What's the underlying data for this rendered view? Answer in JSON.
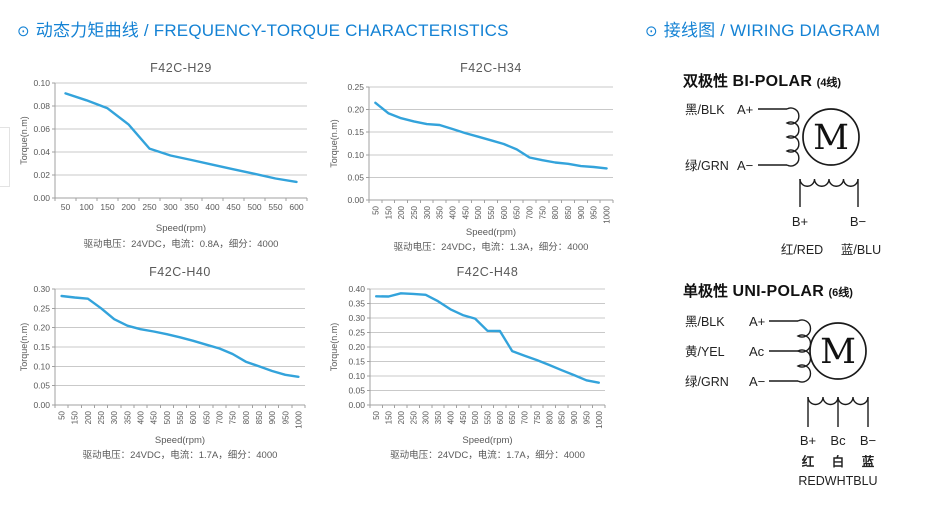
{
  "colors": {
    "accent_blue": "#1482d4",
    "curve_blue": "#33a3db",
    "grid_gray": "#c9c9c9",
    "axis_gray": "#a0a0a0",
    "text_gray": "#595959",
    "diagram_black": "#1a1a1a"
  },
  "headers": {
    "left": {
      "bullet": "⊙",
      "text": "动态力矩曲线 / FREQUENCY-TORQUE CHARACTERISTICS"
    },
    "right": {
      "bullet": "⊙",
      "text": "接线图 / WIRING DIAGRAM"
    }
  },
  "chart_data": [
    {
      "type": "line",
      "title": "F42C-H29",
      "xlabel": "Speed(rpm)",
      "ylabel": "Torque(n.m)",
      "caption": "驱动电压：24VDC，电流：0.8A，细分：4000",
      "categories": [
        50,
        100,
        150,
        200,
        250,
        300,
        350,
        400,
        450,
        500,
        550,
        600
      ],
      "values": [
        0.091,
        0.085,
        0.078,
        0.064,
        0.043,
        0.037,
        0.033,
        0.029,
        0.025,
        0.021,
        0.017,
        0.014
      ],
      "ylim": [
        0,
        0.1
      ],
      "y_step": 0.02,
      "y_ticks": [
        "0.00",
        "0.02",
        "0.04",
        "0.06",
        "0.08",
        "0.10"
      ],
      "x_labels_rotated": false,
      "grid": true,
      "legend": "none"
    },
    {
      "type": "line",
      "title": "F42C-H34",
      "xlabel": "Speed(rpm)",
      "ylabel": "Torque(n.m)",
      "caption": "驱动电压：24VDC，电流：1.3A，细分：4000",
      "categories": [
        50,
        150,
        200,
        250,
        300,
        350,
        400,
        450,
        500,
        550,
        600,
        650,
        700,
        750,
        800,
        850,
        900,
        950,
        1000
      ],
      "values": [
        0.215,
        0.192,
        0.181,
        0.174,
        0.168,
        0.166,
        0.157,
        0.148,
        0.14,
        0.132,
        0.124,
        0.112,
        0.094,
        0.088,
        0.083,
        0.08,
        0.075,
        0.073,
        0.07
      ],
      "ylim": [
        0,
        0.25
      ],
      "y_step": 0.05,
      "y_ticks": [
        "0.00",
        "0.05",
        "0.10",
        "0.15",
        "0.20",
        "0.25"
      ],
      "x_labels_rotated": true,
      "grid": true,
      "legend": "none"
    },
    {
      "type": "line",
      "title": "F42C-H40",
      "xlabel": "Speed(rpm)",
      "ylabel": "Torque(n.m)",
      "caption": "驱动电压：24VDC，电流：1.7A，细分：4000",
      "categories": [
        50,
        150,
        200,
        250,
        300,
        350,
        400,
        450,
        500,
        550,
        600,
        650,
        700,
        750,
        800,
        850,
        900,
        950,
        1000
      ],
      "values": [
        0.282,
        0.278,
        0.275,
        0.25,
        0.222,
        0.205,
        0.196,
        0.19,
        0.183,
        0.175,
        0.166,
        0.156,
        0.146,
        0.132,
        0.112,
        0.1,
        0.088,
        0.078,
        0.073
      ],
      "ylim": [
        0,
        0.3
      ],
      "y_step": 0.05,
      "y_ticks": [
        "0.00",
        "0.05",
        "0.10",
        "0.15",
        "0.20",
        "0.25",
        "0.30"
      ],
      "x_labels_rotated": true,
      "grid": true,
      "legend": "none"
    },
    {
      "type": "line",
      "title": "F42C-H48",
      "xlabel": "Speed(rpm)",
      "ylabel": "Torque(n.m)",
      "caption": "驱动电压：24VDC，电流：1.7A，细分：4000",
      "categories": [
        50,
        150,
        200,
        250,
        300,
        350,
        400,
        450,
        500,
        550,
        600,
        650,
        700,
        750,
        800,
        850,
        900,
        950,
        1000
      ],
      "values": [
        0.375,
        0.374,
        0.385,
        0.383,
        0.38,
        0.358,
        0.33,
        0.31,
        0.298,
        0.256,
        0.255,
        0.186,
        0.17,
        0.155,
        0.138,
        0.12,
        0.103,
        0.085,
        0.077
      ],
      "ylim": [
        0,
        0.4
      ],
      "y_step": 0.05,
      "y_ticks": [
        "0.00",
        "0.05",
        "0.10",
        "0.15",
        "0.20",
        "0.25",
        "0.30",
        "0.35",
        "0.40"
      ],
      "x_labels_rotated": true,
      "grid": true,
      "legend": "none"
    }
  ],
  "wiring": {
    "bipolar": {
      "title_zh": "双极性",
      "title_en": "BI-POLAR",
      "wire_count": "(4线)",
      "motor": "M",
      "phase_a": {
        "plus_color": "黑/BLK",
        "plus": "A+",
        "minus_color": "绿/GRN",
        "minus": "A−"
      },
      "phase_b": {
        "plus": "B+",
        "minus": "B−",
        "plus_color": "红/RED",
        "minus_color": "蓝/BLU"
      }
    },
    "unipolar": {
      "title_zh": "单极性",
      "title_en": "UNI-POLAR",
      "wire_count": "(6线)",
      "motor": "M",
      "phase_a": {
        "plus_color": "黑/BLK",
        "plus": "A+",
        "center_color": "黄/YEL",
        "center": "Ac",
        "minus_color": "绿/GRN",
        "minus": "A−"
      },
      "phase_b": {
        "plus": "B+",
        "center": "Bc",
        "minus": "B−",
        "plus_color_zh": "红",
        "center_color_zh": "白",
        "minus_color_zh": "蓝",
        "colors_en": "REDWHTBLU"
      }
    }
  }
}
